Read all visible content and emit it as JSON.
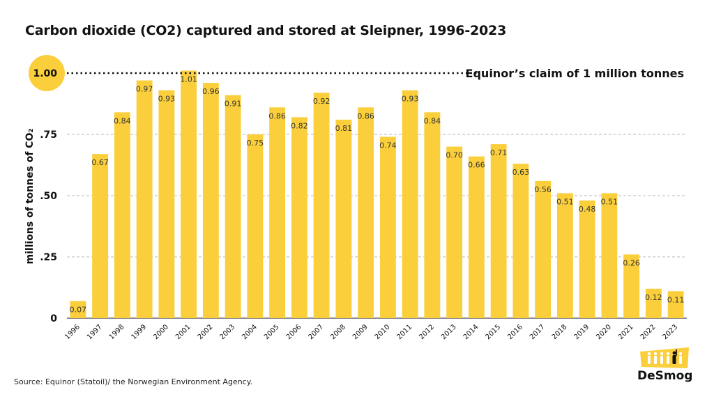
{
  "chart_data": {
    "type": "bar",
    "title": "Carbon dioxide (CO2) captured and stored at Sleipner, 1996-2023",
    "ylabel": "millions of  tonnes of CO₂",
    "ylim": [
      0,
      1.0
    ],
    "yticks": [
      {
        "value": 0,
        "label": "0"
      },
      {
        "value": 0.25,
        "label": ".25"
      },
      {
        "value": 0.5,
        "label": ".50"
      },
      {
        "value": 0.75,
        "label": ".75"
      },
      {
        "value": 1.0,
        "label": "1.00"
      }
    ],
    "grid": true,
    "categories": [
      "1996",
      "1997",
      "1998",
      "1999",
      "2000",
      "2001",
      "2002",
      "2003",
      "2004",
      "2005",
      "2006",
      "2007",
      "2008",
      "2009",
      "2010",
      "2011",
      "2012",
      "2013",
      "2014",
      "2015",
      "2016",
      "2017",
      "2018",
      "2019",
      "2020",
      "2021",
      "2022",
      "2023"
    ],
    "values": [
      0.07,
      0.67,
      0.84,
      0.97,
      0.93,
      1.01,
      0.96,
      0.91,
      0.75,
      0.86,
      0.82,
      0.92,
      0.81,
      0.86,
      0.74,
      0.93,
      0.84,
      0.7,
      0.66,
      0.71,
      0.63,
      0.56,
      0.51,
      0.48,
      0.51,
      0.26,
      0.12,
      0.11
    ],
    "labels": [
      "0.07",
      "0.67",
      "0.84",
      "0.97",
      "0.93",
      "1.01",
      "0.96",
      "0.91",
      "0.75",
      "0.86",
      "0.82",
      "0.92",
      "0.81",
      "0.86",
      "0.74",
      "0.93",
      "0.84",
      "0.70",
      "0.66",
      "0.71",
      "0.63",
      "0.56",
      "0.51",
      "0.48",
      "0.51",
      "0.26",
      "0.12",
      "0.11"
    ],
    "reference_line": {
      "value": 1.0,
      "label": "Equinor’s claim of 1 million tonnes"
    },
    "colors": {
      "bar": "#fbcf3b",
      "highlight": "#fbcf3b",
      "grid": "#b8b8b8"
    }
  },
  "source": "Source: Equinor (Statoil)/ the Norwegian Environment Agency.",
  "logo": {
    "text": "DeSmog",
    "icon": "people-silhouettes-icon"
  }
}
